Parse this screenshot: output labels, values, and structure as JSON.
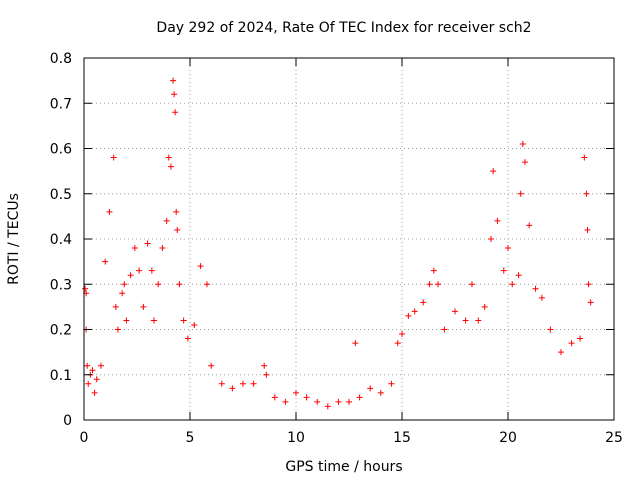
{
  "chart_data": {
    "type": "scatter",
    "title": "Day 292 of 2024, Rate Of TEC Index for receiver sch2",
    "xlabel": "GPS time / hours",
    "ylabel": "ROTI / TECUs",
    "xlim": [
      0,
      25
    ],
    "ylim": [
      0,
      0.8
    ],
    "xticks": [
      0,
      5,
      10,
      15,
      20,
      25
    ],
    "yticks": [
      0,
      0.1,
      0.2,
      0.3,
      0.4,
      0.5,
      0.6,
      0.7,
      0.8
    ],
    "xtick_labels": [
      "0",
      "5",
      "10",
      "15",
      "20",
      "25"
    ],
    "ytick_labels": [
      "0",
      "0.1",
      "0.2",
      "0.3",
      "0.4",
      "0.5",
      "0.6",
      "0.7",
      "0.8"
    ],
    "grid": true,
    "marker": "+",
    "color": "#ff0000",
    "series": [
      {
        "x": [
          0.05,
          0.1,
          0.1,
          0.15,
          0.2,
          0.3,
          0.4,
          0.5,
          0.6,
          0.8,
          1.0,
          1.2,
          1.4,
          1.5,
          1.6,
          1.8,
          1.9,
          2.0,
          2.2,
          2.4,
          2.6,
          2.8,
          3.0,
          3.2,
          3.3,
          3.5,
          3.7,
          3.9,
          4.0,
          4.1,
          4.2,
          4.25,
          4.3,
          4.35,
          4.4,
          4.5,
          4.7,
          4.9,
          5.2,
          5.5,
          5.8,
          6.0,
          6.5,
          7.0,
          7.5,
          8.0,
          8.5,
          8.6,
          9.0,
          9.5,
          10.0,
          10.5,
          11.0,
          11.5,
          12.0,
          12.5,
          12.8,
          13.0,
          13.5,
          14.0,
          14.5,
          14.8,
          15.0,
          15.3,
          15.6,
          16.0,
          16.3,
          16.5,
          16.7,
          17.0,
          17.5,
          18.0,
          18.3,
          18.6,
          18.9,
          19.2,
          19.3,
          19.5,
          19.8,
          20.0,
          20.2,
          20.5,
          20.6,
          20.7,
          20.8,
          21.0,
          21.3,
          21.6,
          22.0,
          22.5,
          23.0,
          23.4,
          23.6,
          23.7,
          23.75,
          23.8,
          23.9
        ],
        "y": [
          0.29,
          0.28,
          0.2,
          0.12,
          0.08,
          0.1,
          0.11,
          0.06,
          0.09,
          0.12,
          0.35,
          0.46,
          0.58,
          0.25,
          0.2,
          0.28,
          0.3,
          0.22,
          0.32,
          0.38,
          0.33,
          0.25,
          0.39,
          0.33,
          0.22,
          0.3,
          0.38,
          0.44,
          0.58,
          0.56,
          0.75,
          0.72,
          0.68,
          0.46,
          0.42,
          0.3,
          0.22,
          0.18,
          0.21,
          0.34,
          0.3,
          0.12,
          0.08,
          0.07,
          0.08,
          0.08,
          0.12,
          0.1,
          0.05,
          0.04,
          0.06,
          0.05,
          0.04,
          0.03,
          0.04,
          0.04,
          0.17,
          0.05,
          0.07,
          0.06,
          0.08,
          0.17,
          0.19,
          0.23,
          0.24,
          0.26,
          0.3,
          0.33,
          0.3,
          0.2,
          0.24,
          0.22,
          0.3,
          0.22,
          0.25,
          0.4,
          0.55,
          0.44,
          0.33,
          0.38,
          0.3,
          0.32,
          0.5,
          0.61,
          0.57,
          0.43,
          0.29,
          0.27,
          0.2,
          0.15,
          0.17,
          0.18,
          0.58,
          0.5,
          0.42,
          0.3,
          0.26
        ]
      }
    ]
  }
}
